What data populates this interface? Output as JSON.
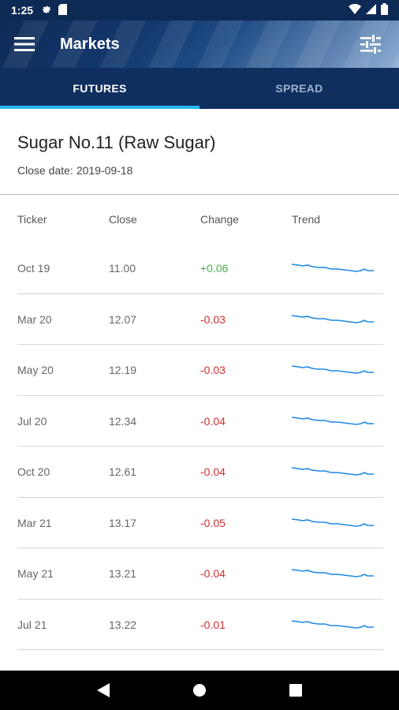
{
  "status_bar": {
    "time": "1:25",
    "icons_left": [
      "gear-icon",
      "sd-card-icon"
    ],
    "icons_right": [
      "wifi-icon",
      "signal-icon",
      "battery-icon"
    ]
  },
  "app_bar": {
    "title": "Markets",
    "menu_icon": "hamburger-menu-icon",
    "filter_icon": "tune-sliders-icon"
  },
  "tabs": [
    {
      "label": "FUTURES",
      "active": true
    },
    {
      "label": "SPREAD",
      "active": false
    }
  ],
  "product": {
    "title": "Sugar No.11 (Raw Sugar)",
    "close_date_label": "Close date:",
    "close_date": "2019-09-18"
  },
  "table": {
    "headers": {
      "ticker": "Ticker",
      "close": "Close",
      "change": "Change",
      "trend": "Trend"
    },
    "rows": [
      {
        "ticker": "Oct 19",
        "close": "11.00",
        "change": "+0.06",
        "direction": "up"
      },
      {
        "ticker": "Mar 20",
        "close": "12.07",
        "change": "-0.03",
        "direction": "down"
      },
      {
        "ticker": "May 20",
        "close": "12.19",
        "change": "-0.03",
        "direction": "down"
      },
      {
        "ticker": "Jul 20",
        "close": "12.34",
        "change": "-0.04",
        "direction": "down"
      },
      {
        "ticker": "Oct 20",
        "close": "12.61",
        "change": "-0.04",
        "direction": "down"
      },
      {
        "ticker": "Mar 21",
        "close": "13.17",
        "change": "-0.05",
        "direction": "down"
      },
      {
        "ticker": "May 21",
        "close": "13.21",
        "change": "-0.04",
        "direction": "down"
      },
      {
        "ticker": "Jul 21",
        "close": "13.22",
        "change": "-0.01",
        "direction": "down"
      }
    ]
  },
  "colors": {
    "primary_dark": "#0f2f5e",
    "tab_indicator": "#29b6f6",
    "positive": "#4caf50",
    "negative": "#d32f2f",
    "sparkline": "#1e88e5"
  },
  "nav_bar": {
    "buttons": [
      "back-triangle-icon",
      "home-circle-icon",
      "recents-square-icon"
    ]
  }
}
